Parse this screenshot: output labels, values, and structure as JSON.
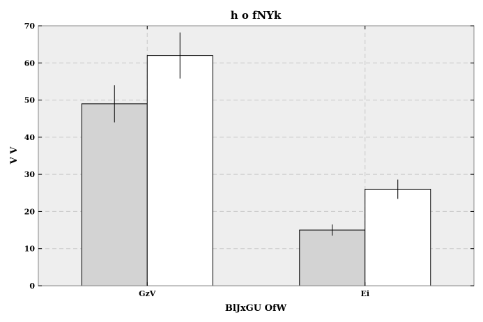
{
  "chart_data": {
    "type": "bar",
    "title": "h o  fNYk",
    "xlabel": "BlJxGU OfW",
    "ylabel": "V  V",
    "categories": [
      "GzV",
      "Ei"
    ],
    "series": [
      {
        "values": [
          49,
          15
        ],
        "errors": [
          5,
          1.5
        ],
        "color": "#d3d3d3"
      },
      {
        "values": [
          62,
          26
        ],
        "errors": [
          6.2,
          2.6
        ],
        "color": "#ffffff"
      }
    ],
    "ylim": [
      0,
      70
    ],
    "yticks": [
      0,
      10,
      20,
      30,
      40,
      50,
      60,
      70
    ],
    "grid": true,
    "background": "#eeeeee"
  }
}
